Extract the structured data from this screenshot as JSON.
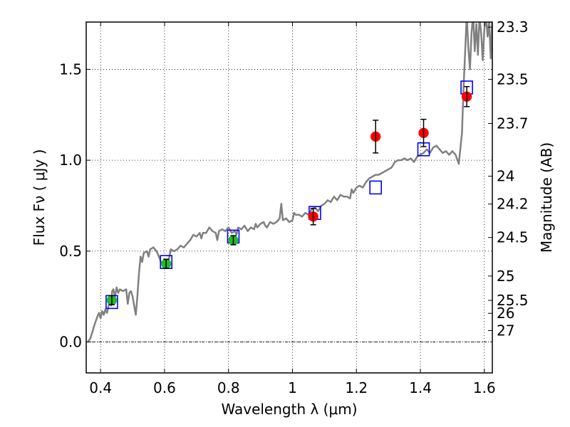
{
  "chart_data": {
    "type": "scatter",
    "title": "",
    "xlabel": "Wavelength  λ (μm)",
    "ylabel": "Flux  Fν  ( μJy )",
    "y2label": "Magnitude (AB)",
    "xlim": [
      0.355,
      1.625
    ],
    "ylim": [
      -0.17,
      1.76
    ],
    "grid": true,
    "xticks": [
      0.4,
      0.6,
      0.8,
      1.0,
      1.2,
      1.4,
      1.6
    ],
    "xtick_labels": [
      "0.4",
      "0.6",
      "0.8",
      "1",
      "1.2",
      "1.4",
      "1.6"
    ],
    "yticks": [
      0.0,
      0.5,
      1.0,
      1.5
    ],
    "ytick_labels": [
      "0.0",
      "0.5",
      "1.0",
      "1.5"
    ],
    "mag_ticks": [
      {
        "label": "23.3",
        "flux": 1.732
      },
      {
        "label": "23.5",
        "flux": 1.445
      },
      {
        "label": "23.7",
        "flux": 1.202
      },
      {
        "label": "24",
        "flux": 0.912
      },
      {
        "label": "24.2",
        "flux": 0.759
      },
      {
        "label": "24.5",
        "flux": 0.575
      },
      {
        "label": "25",
        "flux": 0.363
      },
      {
        "label": "25.5",
        "flux": 0.229
      },
      {
        "label": "26",
        "flux": 0.158
      },
      {
        "label": "27",
        "flux": 0.063
      }
    ],
    "zero_line": 0.0,
    "series": [
      {
        "name": "model-spectrum",
        "kind": "line",
        "color": "#808080",
        "points": [
          [
            0.36,
            0.0
          ],
          [
            0.368,
            0.02
          ],
          [
            0.375,
            0.06
          ],
          [
            0.382,
            0.1
          ],
          [
            0.39,
            0.14
          ],
          [
            0.395,
            0.16
          ],
          [
            0.4,
            0.13
          ],
          [
            0.405,
            0.17
          ],
          [
            0.41,
            0.15
          ],
          [
            0.415,
            0.18
          ],
          [
            0.42,
            0.16
          ],
          [
            0.425,
            0.2
          ],
          [
            0.43,
            0.24
          ],
          [
            0.433,
            0.2
          ],
          [
            0.436,
            0.28
          ],
          [
            0.44,
            0.29
          ],
          [
            0.445,
            0.25
          ],
          [
            0.45,
            0.3
          ],
          [
            0.455,
            0.27
          ],
          [
            0.46,
            0.29
          ],
          [
            0.47,
            0.28
          ],
          [
            0.48,
            0.29
          ],
          [
            0.485,
            0.21
          ],
          [
            0.49,
            0.27
          ],
          [
            0.495,
            0.28
          ],
          [
            0.5,
            0.25
          ],
          [
            0.505,
            0.2
          ],
          [
            0.51,
            0.15
          ],
          [
            0.515,
            0.25
          ],
          [
            0.52,
            0.38
          ],
          [
            0.525,
            0.47
          ],
          [
            0.53,
            0.44
          ],
          [
            0.535,
            0.49
          ],
          [
            0.545,
            0.5
          ],
          [
            0.55,
            0.47
          ],
          [
            0.555,
            0.51
          ],
          [
            0.565,
            0.52
          ],
          [
            0.575,
            0.5
          ],
          [
            0.585,
            0.46
          ],
          [
            0.59,
            0.43
          ],
          [
            0.6,
            0.44
          ],
          [
            0.605,
            0.45
          ],
          [
            0.61,
            0.42
          ],
          [
            0.615,
            0.47
          ],
          [
            0.62,
            0.51
          ],
          [
            0.63,
            0.5
          ],
          [
            0.64,
            0.51
          ],
          [
            0.65,
            0.53
          ],
          [
            0.66,
            0.52
          ],
          [
            0.67,
            0.54
          ],
          [
            0.68,
            0.56
          ],
          [
            0.69,
            0.59
          ],
          [
            0.7,
            0.58
          ],
          [
            0.71,
            0.6
          ],
          [
            0.715,
            0.57
          ],
          [
            0.72,
            0.6
          ],
          [
            0.73,
            0.6
          ],
          [
            0.74,
            0.63
          ],
          [
            0.75,
            0.61
          ],
          [
            0.76,
            0.6
          ],
          [
            0.765,
            0.56
          ],
          [
            0.77,
            0.61
          ],
          [
            0.78,
            0.62
          ],
          [
            0.79,
            0.61
          ],
          [
            0.8,
            0.63
          ],
          [
            0.81,
            0.6
          ],
          [
            0.82,
            0.61
          ],
          [
            0.825,
            0.59
          ],
          [
            0.83,
            0.63
          ],
          [
            0.84,
            0.62
          ],
          [
            0.85,
            0.64
          ],
          [
            0.86,
            0.61
          ],
          [
            0.87,
            0.63
          ],
          [
            0.88,
            0.62
          ],
          [
            0.885,
            0.65
          ],
          [
            0.89,
            0.63
          ],
          [
            0.9,
            0.65
          ],
          [
            0.91,
            0.66
          ],
          [
            0.915,
            0.64
          ],
          [
            0.92,
            0.63
          ],
          [
            0.93,
            0.66
          ],
          [
            0.94,
            0.65
          ],
          [
            0.95,
            0.66
          ],
          [
            0.96,
            0.68
          ],
          [
            0.965,
            0.76
          ],
          [
            0.97,
            0.67
          ],
          [
            0.98,
            0.68
          ],
          [
            0.99,
            0.66
          ],
          [
            1.0,
            0.67
          ],
          [
            1.005,
            0.71
          ],
          [
            1.01,
            0.7
          ],
          [
            1.02,
            0.7
          ],
          [
            1.03,
            0.69
          ],
          [
            1.04,
            0.71
          ],
          [
            1.05,
            0.7
          ],
          [
            1.06,
            0.73
          ],
          [
            1.07,
            0.74
          ],
          [
            1.08,
            0.72
          ],
          [
            1.09,
            0.75
          ],
          [
            1.1,
            0.76
          ],
          [
            1.11,
            0.78
          ],
          [
            1.12,
            0.77
          ],
          [
            1.13,
            0.8
          ],
          [
            1.14,
            0.78
          ],
          [
            1.15,
            0.81
          ],
          [
            1.16,
            0.8
          ],
          [
            1.17,
            0.8
          ],
          [
            1.18,
            0.79
          ],
          [
            1.185,
            0.84
          ],
          [
            1.19,
            0.82
          ],
          [
            1.2,
            0.85
          ],
          [
            1.21,
            0.86
          ],
          [
            1.22,
            0.85
          ],
          [
            1.23,
            0.88
          ],
          [
            1.24,
            0.9
          ],
          [
            1.25,
            0.91
          ],
          [
            1.26,
            0.92
          ],
          [
            1.27,
            0.92
          ],
          [
            1.28,
            0.93
          ],
          [
            1.29,
            0.94
          ],
          [
            1.3,
            0.95
          ],
          [
            1.31,
            0.96
          ],
          [
            1.32,
            0.99
          ],
          [
            1.33,
            1.0
          ],
          [
            1.34,
            1.0
          ],
          [
            1.35,
            1.01
          ],
          [
            1.36,
            1.0
          ],
          [
            1.37,
            1.01
          ],
          [
            1.38,
            0.99
          ],
          [
            1.39,
            1.02
          ],
          [
            1.4,
            1.03
          ],
          [
            1.41,
            1.04
          ],
          [
            1.42,
            1.06
          ],
          [
            1.43,
            1.04
          ],
          [
            1.44,
            1.07
          ],
          [
            1.45,
            1.08
          ],
          [
            1.46,
            1.06
          ],
          [
            1.47,
            1.04
          ],
          [
            1.48,
            1.05
          ],
          [
            1.49,
            1.03
          ],
          [
            1.5,
            1.05
          ],
          [
            1.51,
            1.03
          ],
          [
            1.52,
            0.98
          ],
          [
            1.53,
            1.15
          ],
          [
            1.535,
            1.4
          ],
          [
            1.54,
            1.6
          ],
          [
            1.545,
            1.8
          ],
          [
            1.55,
            1.62
          ],
          [
            1.555,
            1.5
          ],
          [
            1.56,
            1.7
          ],
          [
            1.565,
            1.8
          ],
          [
            1.57,
            1.6
          ],
          [
            1.575,
            1.75
          ],
          [
            1.58,
            1.58
          ],
          [
            1.585,
            1.79
          ],
          [
            1.59,
            1.7
          ],
          [
            1.595,
            1.55
          ],
          [
            1.6,
            1.72
          ],
          [
            1.605,
            1.8
          ],
          [
            1.61,
            1.68
          ],
          [
            1.615,
            1.76
          ],
          [
            1.62,
            1.56
          ],
          [
            1.625,
            1.8
          ]
        ]
      },
      {
        "name": "model-photometry",
        "kind": "open-square",
        "color": "#0000ff",
        "x": [
          0.435,
          0.605,
          0.815,
          1.07,
          1.26,
          1.41,
          1.545
        ],
        "y": [
          0.22,
          0.44,
          0.58,
          0.71,
          0.85,
          1.06,
          1.4
        ]
      },
      {
        "name": "optical-photometry",
        "kind": "filled-circle",
        "color": "#22bb22",
        "x": [
          0.435,
          0.605,
          0.815
        ],
        "y": [
          0.23,
          0.43,
          0.56
        ],
        "yerr": [
          0.025,
          0.025,
          0.025
        ]
      },
      {
        "name": "nir-photometry",
        "kind": "filled-circle",
        "color": "#ff0000",
        "x": [
          1.065,
          1.26,
          1.41,
          1.545
        ],
        "y": [
          0.69,
          1.13,
          1.15,
          1.35
        ],
        "yerr": [
          0.045,
          0.09,
          0.075,
          0.055
        ]
      }
    ]
  }
}
